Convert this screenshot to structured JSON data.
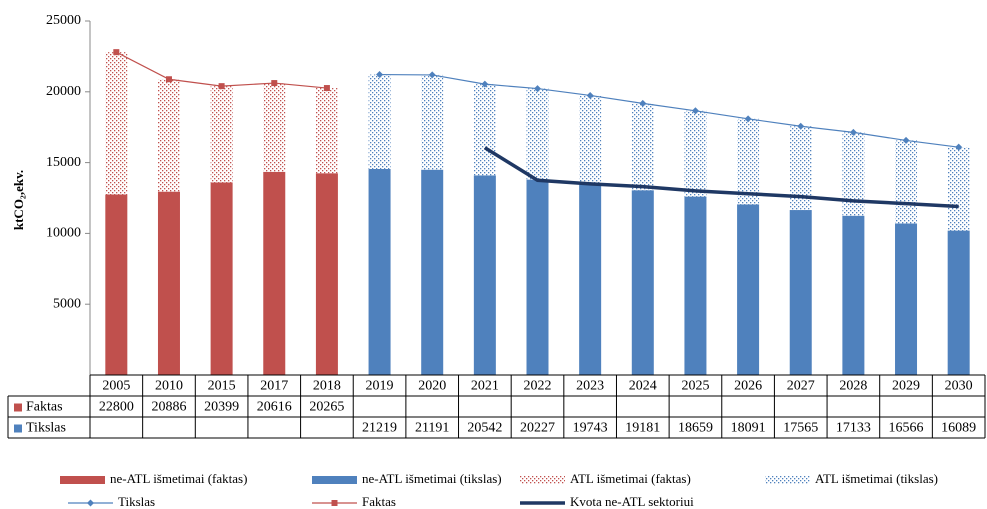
{
  "chart_data": {
    "type": "combo",
    "y_label": "ktCO₂,ekv.",
    "categories": [
      "2005",
      "2010",
      "2015",
      "2017",
      "2018",
      "2019",
      "2020",
      "2021",
      "2022",
      "2023",
      "2024",
      "2025",
      "2026",
      "2027",
      "2028",
      "2029",
      "2030"
    ],
    "ylim": [
      0,
      25000
    ],
    "yticks": [
      5000,
      10000,
      15000,
      20000,
      25000
    ],
    "grid": false,
    "series": [
      {
        "name": "ne-ATL išmetimai (faktas)",
        "kind": "bar",
        "fill": "solid",
        "color": "#c0504d",
        "values": [
          12750,
          12950,
          13600,
          14350,
          14250,
          null,
          null,
          null,
          null,
          null,
          null,
          null,
          null,
          null,
          null,
          null,
          null
        ]
      },
      {
        "name": "ne-ATL išmetimai (tikslas)",
        "kind": "bar",
        "fill": "solid",
        "color": "#4f81bd",
        "values": [
          null,
          null,
          null,
          null,
          null,
          14550,
          14500,
          14100,
          13800,
          13450,
          13050,
          12600,
          12050,
          11650,
          11250,
          10700,
          10200
        ]
      },
      {
        "name": "ATL išmetimai (faktas)",
        "kind": "bar",
        "fill": "dotted",
        "color": "#c0504d",
        "stack_on": 0,
        "values": [
          10050,
          7936,
          6799,
          6266,
          6015,
          null,
          null,
          null,
          null,
          null,
          null,
          null,
          null,
          null,
          null,
          null,
          null
        ]
      },
      {
        "name": "ATL išmetimai (tikslas)",
        "kind": "bar",
        "fill": "dotted",
        "color": "#4f81bd",
        "stack_on": 1,
        "values": [
          null,
          null,
          null,
          null,
          null,
          6669,
          6691,
          6442,
          6427,
          6293,
          6131,
          6059,
          6041,
          5915,
          5883,
          5866,
          5889
        ]
      },
      {
        "name": "Tikslas",
        "kind": "line",
        "marker": "diamond",
        "color": "#4f81bd",
        "width": 1.2,
        "values": [
          null,
          null,
          null,
          null,
          null,
          21219,
          21191,
          20542,
          20227,
          19743,
          19181,
          18659,
          18091,
          17565,
          17133,
          16566,
          16089
        ]
      },
      {
        "name": "Faktas",
        "kind": "line",
        "marker": "square",
        "color": "#c0504d",
        "width": 1.2,
        "values": [
          22800,
          20886,
          20399,
          20616,
          20265,
          null,
          null,
          null,
          null,
          null,
          null,
          null,
          null,
          null,
          null,
          null,
          null
        ]
      },
      {
        "name": "Kvota ne-ATL sektoriui",
        "kind": "line",
        "color": "#1f3864",
        "width": 3.5,
        "values": [
          null,
          null,
          null,
          null,
          null,
          null,
          null,
          16050,
          13750,
          13500,
          13300,
          13000,
          12800,
          12600,
          12300,
          12100,
          11900
        ]
      }
    ],
    "table_rows": [
      5,
      4
    ]
  }
}
